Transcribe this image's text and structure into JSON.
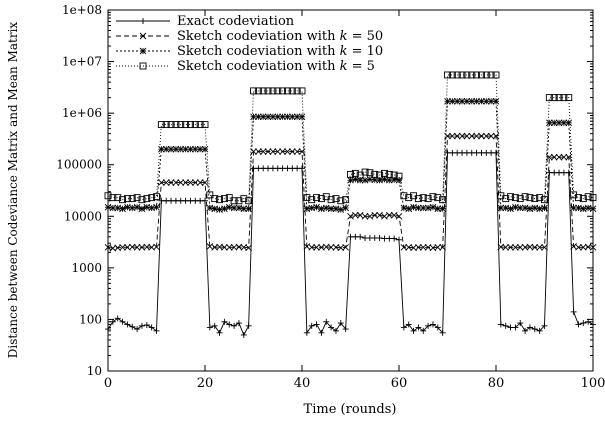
{
  "chart_data": {
    "type": "line",
    "title": "",
    "xlabel": "Time (rounds)",
    "ylabel": "Distance between Codeviance Matrix and Mean Matrix",
    "xlim": [
      0,
      100
    ],
    "ylim": [
      10,
      100000000
    ],
    "yscale": "log",
    "x_ticks": [
      0,
      20,
      40,
      60,
      80,
      100
    ],
    "x_tick_labels": [
      "0",
      "20",
      "40",
      "60",
      "80",
      "100"
    ],
    "y_ticks": [
      10,
      100,
      1000,
      10000,
      100000,
      1000000,
      10000000,
      100000000
    ],
    "y_tick_labels": [
      "10",
      "100",
      "1000",
      "10000",
      "100000",
      "1e+06",
      "1e+07",
      "1e+08"
    ],
    "grid": false,
    "legend_position": "top-left",
    "x": [
      0,
      1,
      2,
      3,
      4,
      5,
      6,
      7,
      8,
      9,
      10,
      11,
      12,
      13,
      14,
      15,
      16,
      17,
      18,
      19,
      20,
      21,
      22,
      23,
      24,
      25,
      26,
      27,
      28,
      29,
      30,
      31,
      32,
      33,
      34,
      35,
      36,
      37,
      38,
      39,
      40,
      41,
      42,
      43,
      44,
      45,
      46,
      47,
      48,
      49,
      50,
      51,
      52,
      53,
      54,
      55,
      56,
      57,
      58,
      59,
      60,
      61,
      62,
      63,
      64,
      65,
      66,
      67,
      68,
      69,
      70,
      71,
      72,
      73,
      74,
      75,
      76,
      77,
      78,
      79,
      80,
      81,
      82,
      83,
      84,
      85,
      86,
      87,
      88,
      89,
      90,
      91,
      92,
      93,
      94,
      95,
      96,
      97,
      98,
      99,
      100
    ],
    "series": [
      {
        "name": "Exact codeviation",
        "marker": "plus",
        "dash": "none",
        "values": [
          65,
          90,
          105,
          90,
          80,
          72,
          65,
          75,
          78,
          70,
          60,
          20000,
          20000,
          20000,
          20000,
          20000,
          20000,
          20000,
          20000,
          20000,
          20000,
          70,
          75,
          55,
          90,
          80,
          75,
          85,
          50,
          75,
          85000,
          85000,
          85000,
          85000,
          85000,
          85000,
          85000,
          85000,
          85000,
          85000,
          85000,
          55,
          75,
          80,
          55,
          90,
          70,
          60,
          85,
          65,
          4000,
          4000,
          4000,
          3800,
          3800,
          3800,
          3800,
          3700,
          3700,
          3700,
          3500,
          70,
          80,
          60,
          70,
          60,
          75,
          80,
          70,
          55,
          170000,
          170000,
          170000,
          170000,
          170000,
          170000,
          170000,
          170000,
          170000,
          170000,
          170000,
          80,
          75,
          70,
          70,
          85,
          60,
          70,
          65,
          60,
          75,
          70000,
          70000,
          70000,
          70000,
          70000,
          140,
          80,
          85,
          90,
          80
        ]
      },
      {
        "name": "Sketch codeviation with k = 50",
        "name_parts": [
          "Sketch codeviation with ",
          "k",
          " = 50"
        ],
        "marker": "cross",
        "dash": "5,3",
        "values": [
          2500,
          2400,
          2450,
          2500,
          2500,
          2550,
          2500,
          2500,
          2550,
          2500,
          2550,
          45000,
          45000,
          45000,
          45000,
          45000,
          45000,
          45000,
          45000,
          45000,
          45000,
          2600,
          2500,
          2550,
          2500,
          2500,
          2500,
          2550,
          2500,
          2450,
          180000,
          180000,
          180000,
          180000,
          180000,
          180000,
          180000,
          180000,
          180000,
          180000,
          180000,
          2600,
          2500,
          2500,
          2500,
          2550,
          2500,
          2500,
          2450,
          2500,
          10000,
          10500,
          10500,
          10000,
          10000,
          10500,
          10500,
          10000,
          10500,
          10500,
          10000,
          2500,
          2500,
          2450,
          2500,
          2500,
          2500,
          2450,
          2500,
          2500,
          360000,
          360000,
          360000,
          360000,
          360000,
          360000,
          360000,
          360000,
          360000,
          360000,
          360000,
          2550,
          2500,
          2500,
          2500,
          2500,
          2500,
          2550,
          2500,
          2500,
          2500,
          140000,
          140000,
          140000,
          140000,
          140000,
          2600,
          2500,
          2500,
          2550,
          2500
        ]
      },
      {
        "name": "Sketch codeviation with k = 10",
        "name_parts": [
          "Sketch codeviation with ",
          "k",
          " = 10"
        ],
        "marker": "star",
        "dash": "2,2",
        "values": [
          15000,
          14500,
          14500,
          14000,
          15000,
          14500,
          15000,
          14000,
          15000,
          14500,
          15000,
          200000,
          200000,
          200000,
          200000,
          200000,
          200000,
          200000,
          200000,
          200000,
          200000,
          14500,
          14000,
          13500,
          14000,
          15000,
          14500,
          14500,
          14000,
          14000,
          850000,
          850000,
          850000,
          850000,
          850000,
          850000,
          850000,
          850000,
          850000,
          850000,
          850000,
          14000,
          14500,
          15000,
          14000,
          14500,
          14000,
          14000,
          13500,
          14500,
          50000,
          52000,
          50000,
          50000,
          52000,
          51000,
          50000,
          52000,
          50000,
          51000,
          50000,
          14500,
          14000,
          15000,
          14500,
          14500,
          14500,
          15000,
          14000,
          14000,
          1700000,
          1700000,
          1700000,
          1700000,
          1700000,
          1700000,
          1700000,
          1700000,
          1700000,
          1700000,
          1700000,
          14500,
          14500,
          14000,
          15000,
          14500,
          14500,
          14000,
          14500,
          14000,
          14500,
          650000,
          650000,
          650000,
          650000,
          650000,
          14500,
          14500,
          14000,
          14500,
          14000
        ]
      },
      {
        "name": "Sketch codeviation with k = 5",
        "name_parts": [
          "Sketch codeviation with ",
          "k",
          " = 5"
        ],
        "marker": "square",
        "dash": "1,2",
        "values": [
          25000,
          23000,
          23000,
          21000,
          22000,
          22000,
          23000,
          21000,
          22000,
          23000,
          24000,
          600000,
          600000,
          600000,
          600000,
          600000,
          600000,
          600000,
          600000,
          600000,
          600000,
          26000,
          22000,
          21000,
          22000,
          23000,
          20000,
          20000,
          22000,
          20000,
          2700000,
          2700000,
          2700000,
          2700000,
          2700000,
          2700000,
          2700000,
          2700000,
          2700000,
          2700000,
          2700000,
          23000,
          21000,
          23000,
          22000,
          24000,
          21000,
          22000,
          20000,
          21000,
          65000,
          68000,
          63000,
          72000,
          70000,
          65000,
          63000,
          68000,
          65000,
          63000,
          60000,
          25000,
          23000,
          25000,
          22000,
          23000,
          22000,
          24000,
          23000,
          21000,
          5500000,
          5500000,
          5500000,
          5500000,
          5500000,
          5500000,
          5500000,
          5500000,
          5500000,
          5500000,
          5500000,
          25000,
          22000,
          24000,
          23000,
          22000,
          24000,
          23000,
          22000,
          23000,
          21000,
          2000000,
          2000000,
          2000000,
          2000000,
          2000000,
          26000,
          23000,
          22000,
          24000,
          23000
        ]
      }
    ]
  }
}
